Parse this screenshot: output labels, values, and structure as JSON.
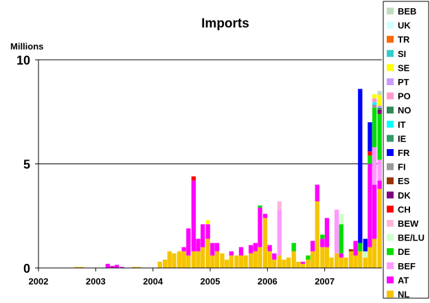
{
  "chart_data": {
    "type": "bar",
    "stacked": true,
    "title": "Imports",
    "ylabel": "Millions",
    "ylim": [
      0,
      10
    ],
    "yticks": [
      0,
      5,
      10
    ],
    "grid": "horizontal",
    "legend_position": "right",
    "x_range": [
      2002.0,
      2008.0
    ],
    "x_ticks": [
      "2002",
      "2003",
      "2004",
      "2005",
      "2006",
      "2007"
    ],
    "bar_width_years": 0.08333,
    "legend_order": [
      "BEB",
      "UK",
      "TR",
      "SI",
      "SE",
      "PT",
      "PO",
      "NO",
      "IT",
      "IE",
      "FR",
      "FI",
      "ES",
      "DK",
      "CH",
      "BEW",
      "BE/LU",
      "DE",
      "BEF",
      "AT",
      "NL"
    ],
    "series": [
      {
        "name": "NL",
        "color": "#F5C400",
        "points": [
          [
            2002.67,
            0.05
          ],
          [
            2002.75,
            0.05
          ],
          [
            2003.67,
            0.05
          ],
          [
            2003.75,
            0.05
          ],
          [
            2004.12,
            0.3
          ],
          [
            2004.21,
            0.4
          ],
          [
            2004.29,
            0.8
          ],
          [
            2004.37,
            0.7
          ],
          [
            2004.46,
            0.8
          ],
          [
            2004.54,
            0.8
          ],
          [
            2004.62,
            0.6
          ],
          [
            2004.71,
            0.8
          ],
          [
            2004.79,
            0.8
          ],
          [
            2004.87,
            1.0
          ],
          [
            2004.96,
            1.4
          ],
          [
            2005.04,
            0.6
          ],
          [
            2005.12,
            0.8
          ],
          [
            2005.21,
            0.7
          ],
          [
            2005.29,
            0.4
          ],
          [
            2005.37,
            0.6
          ],
          [
            2005.46,
            0.6
          ],
          [
            2005.54,
            0.6
          ],
          [
            2005.62,
            0.6
          ],
          [
            2005.71,
            0.7
          ],
          [
            2005.79,
            0.8
          ],
          [
            2005.87,
            1.0
          ],
          [
            2005.96,
            2.4
          ],
          [
            2006.04,
            0.8
          ],
          [
            2006.12,
            0.4
          ],
          [
            2006.21,
            0.6
          ],
          [
            2006.29,
            0.4
          ],
          [
            2006.37,
            0.5
          ],
          [
            2006.46,
            0.8
          ],
          [
            2006.54,
            0.3
          ],
          [
            2006.62,
            0.2
          ],
          [
            2006.71,
            0.4
          ],
          [
            2006.79,
            0.8
          ],
          [
            2006.87,
            3.2
          ],
          [
            2006.96,
            1.0
          ],
          [
            2007.04,
            1.0
          ],
          [
            2007.12,
            0.5
          ],
          [
            2007.21,
            0.7
          ],
          [
            2007.29,
            0.5
          ],
          [
            2007.37,
            0.5
          ],
          [
            2007.46,
            0.8
          ],
          [
            2007.54,
            0.6
          ],
          [
            2007.62,
            0.8
          ],
          [
            2007.71,
            0.5
          ],
          [
            2007.79,
            1.0
          ],
          [
            2007.87,
            1.4
          ],
          [
            2007.96,
            3.8
          ]
        ]
      },
      {
        "name": "AT",
        "color": "#FF00FF",
        "points": [
          [
            2003.21,
            0.2
          ],
          [
            2003.29,
            0.1
          ],
          [
            2003.37,
            0.15
          ],
          [
            2003.46,
            0.05
          ],
          [
            2004.54,
            0.2
          ],
          [
            2004.62,
            1.3
          ],
          [
            2004.71,
            3.4
          ],
          [
            2004.79,
            0.6
          ],
          [
            2004.87,
            1.1
          ],
          [
            2004.96,
            0.7
          ],
          [
            2005.04,
            0.6
          ],
          [
            2005.12,
            0.4
          ],
          [
            2005.37,
            0.2
          ],
          [
            2005.54,
            0.4
          ],
          [
            2005.71,
            0.4
          ],
          [
            2005.79,
            0.4
          ],
          [
            2005.87,
            1.9
          ],
          [
            2005.96,
            0.2
          ],
          [
            2006.04,
            0.3
          ],
          [
            2006.12,
            0.3
          ],
          [
            2006.62,
            0.1
          ],
          [
            2006.79,
            0.5
          ],
          [
            2006.87,
            0.8
          ],
          [
            2006.96,
            0.4
          ],
          [
            2007.04,
            1.4
          ],
          [
            2007.29,
            0.2
          ],
          [
            2007.54,
            0.7
          ],
          [
            2007.79,
            4.0
          ],
          [
            2007.87,
            2.6
          ],
          [
            2007.96,
            0.4
          ]
        ]
      },
      {
        "name": "BEF",
        "color": "#FF99FF",
        "points": [
          [
            2006.21,
            2.2
          ],
          [
            2007.21,
            2.1
          ],
          [
            2007.87,
            1.8
          ],
          [
            2007.96,
            1.0
          ]
        ]
      },
      {
        "name": "DE",
        "color": "#00DD00",
        "points": [
          [
            2005.87,
            0.1
          ],
          [
            2006.46,
            0.4
          ],
          [
            2006.71,
            0.2
          ],
          [
            2006.96,
            0.2
          ],
          [
            2007.29,
            1.4
          ],
          [
            2007.62,
            0.4
          ],
          [
            2007.79,
            0.4
          ],
          [
            2007.87,
            1.9
          ],
          [
            2007.96,
            2.2
          ]
        ]
      },
      {
        "name": "BE/LU",
        "color": "#CCFFCC",
        "points": [
          [
            2007.29,
            0.5
          ],
          [
            2007.71,
            0.3
          ]
        ]
      },
      {
        "name": "BEW",
        "color": "#FFB6DA",
        "points": [
          [
            2006.21,
            0.4
          ]
        ]
      },
      {
        "name": "CH",
        "color": "#FF0000",
        "points": [
          [
            2004.71,
            0.2
          ],
          [
            2007.79,
            0.2
          ]
        ]
      },
      {
        "name": "DK",
        "color": "#800080",
        "points": [
          [
            2007.96,
            0.2
          ]
        ]
      },
      {
        "name": "ES",
        "color": "#993300",
        "points": [
          [
            2007.46,
            0.1
          ]
        ]
      },
      {
        "name": "FI",
        "color": "#999999",
        "points": [
          [
            2007.87,
            0.15
          ]
        ]
      },
      {
        "name": "FR",
        "color": "#0000FF",
        "points": [
          [
            2007.62,
            7.4
          ],
          [
            2007.71,
            0.6
          ],
          [
            2007.79,
            1.4
          ]
        ]
      },
      {
        "name": "IE",
        "color": "#339966",
        "points": []
      },
      {
        "name": "IT",
        "color": "#00FFFF",
        "points": [
          [
            2007.87,
            0.1
          ]
        ]
      },
      {
        "name": "NO",
        "color": "#2E8B57",
        "points": [
          [
            2007.96,
            0.1
          ]
        ]
      },
      {
        "name": "PO",
        "color": "#FF99CC",
        "points": [
          [
            2007.87,
            0.2
          ]
        ]
      },
      {
        "name": "PT",
        "color": "#CC99FF",
        "points": [
          [
            2007.96,
            0.1
          ]
        ]
      },
      {
        "name": "SE",
        "color": "#FFFF00",
        "points": [
          [
            2004.96,
            0.2
          ],
          [
            2007.87,
            0.2
          ],
          [
            2007.96,
            0.5
          ]
        ]
      },
      {
        "name": "SI",
        "color": "#33CCCC",
        "points": []
      },
      {
        "name": "TR",
        "color": "#FF6600",
        "points": []
      },
      {
        "name": "UK",
        "color": "#CCFFFF",
        "points": []
      },
      {
        "name": "BEB",
        "color": "#C0DCC0",
        "points": [
          [
            2007.96,
            0.2
          ]
        ]
      }
    ]
  }
}
